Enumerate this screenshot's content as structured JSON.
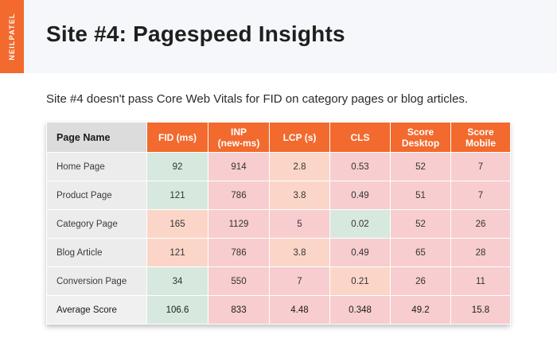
{
  "brand": "NEILPATEL",
  "title": "Site #4: Pagespeed Insights",
  "subtitle": "Site #4 doesn't pass Core Web Vitals for FID on category pages or blog articles.",
  "table": {
    "headers": [
      "Page Name",
      "FID (ms)",
      "INP (new-ms)",
      "LCP (s)",
      "CLS",
      "Score Desktop",
      "Score Mobile"
    ],
    "header_lines": [
      [
        "Page Name"
      ],
      [
        "FID (ms)"
      ],
      [
        "INP",
        "(new-ms)"
      ],
      [
        "LCP (s)"
      ],
      [
        "CLS"
      ],
      [
        "Score",
        "Desktop"
      ],
      [
        "Score",
        "Mobile"
      ]
    ],
    "rows": [
      {
        "name": "Home Page",
        "cells": [
          "92",
          "914",
          "2.8",
          "0.53",
          "52",
          "7"
        ],
        "status": [
          "green",
          "pink",
          "peach",
          "pink",
          "pink",
          "pink"
        ]
      },
      {
        "name": "Product Page",
        "cells": [
          "121",
          "786",
          "3.8",
          "0.49",
          "51",
          "7"
        ],
        "status": [
          "green",
          "pink",
          "peach",
          "pink",
          "pink",
          "pink"
        ]
      },
      {
        "name": "Category Page",
        "cells": [
          "165",
          "1129",
          "5",
          "0.02",
          "52",
          "26"
        ],
        "status": [
          "peach",
          "pink",
          "pink",
          "green",
          "pink",
          "pink"
        ]
      },
      {
        "name": "Blog Article",
        "cells": [
          "121",
          "786",
          "3.8",
          "0.49",
          "65",
          "28"
        ],
        "status": [
          "peach",
          "pink",
          "peach",
          "pink",
          "pink",
          "pink"
        ]
      },
      {
        "name": "Conversion Page",
        "cells": [
          "34",
          "550",
          "7",
          "0.21",
          "26",
          "11"
        ],
        "status": [
          "green",
          "pink",
          "pink",
          "peach",
          "pink",
          "pink"
        ]
      }
    ],
    "average": {
      "name": "Average Score",
      "cells": [
        "106.6",
        "833",
        "4.48",
        "0.348",
        "49.2",
        "15.8"
      ],
      "status": [
        "green",
        "pink",
        "pink",
        "pink",
        "pink",
        "pink"
      ]
    }
  },
  "colors": {
    "accent": "#f26a2e",
    "poor": "#f7cdcf",
    "good": "#d7e9de",
    "needs_improvement": "#fbd6c8"
  }
}
